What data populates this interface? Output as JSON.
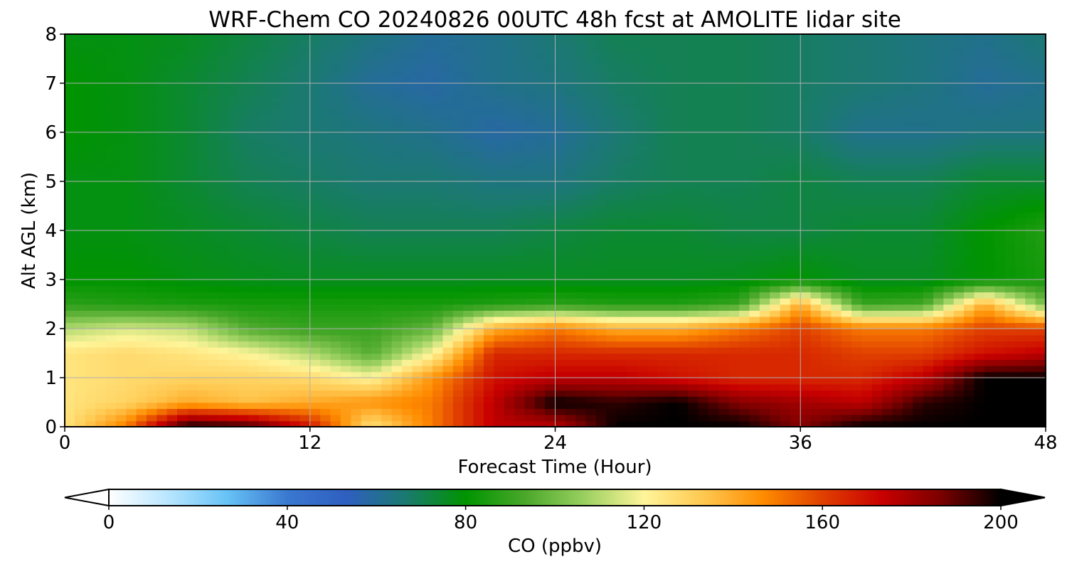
{
  "chart_data": {
    "type": "heatmap",
    "title": "WRF-Chem CO  20240826 00UTC 48h fcst at AMOLITE lidar site",
    "xlabel": "Forecast Time (Hour)",
    "ylabel": "Alt AGL (km)",
    "xlim": [
      0,
      48
    ],
    "ylim": [
      0,
      8
    ],
    "xticks": [
      0,
      12,
      24,
      36,
      48
    ],
    "yticks": [
      0,
      1,
      2,
      3,
      4,
      5,
      6,
      7,
      8
    ],
    "grid": true,
    "colorbar": {
      "label": "CO  (ppbv)",
      "range": [
        0,
        200
      ],
      "extend": "both",
      "ticks": [
        0,
        40,
        80,
        120,
        160,
        200
      ],
      "colors": [
        "#ffffff",
        "#b8e6ff",
        "#66c2f5",
        "#3a78d0",
        "#2e5fc0",
        "#1a7a6e",
        "#009400",
        "#4aa82a",
        "#9ad060",
        "#fff59a",
        "#ffc850",
        "#ff8c00",
        "#e04000",
        "#c80000",
        "#7a0000",
        "#000000"
      ]
    },
    "times": [
      0,
      3,
      6,
      9,
      12,
      15,
      18,
      21,
      24,
      27,
      30,
      33,
      36,
      39,
      42,
      45,
      48
    ],
    "altitudes": [
      0,
      0.5,
      1,
      1.5,
      2,
      2.5,
      3,
      4,
      5,
      6,
      7,
      8
    ],
    "values": [
      [
        125,
        150,
        200,
        195,
        170,
        125,
        150,
        175,
        175,
        200,
        200,
        200,
        185,
        200,
        200,
        200,
        200
      ],
      [
        125,
        130,
        140,
        135,
        140,
        145,
        150,
        175,
        200,
        195,
        200,
        185,
        180,
        175,
        195,
        200,
        200
      ],
      [
        125,
        128,
        130,
        130,
        128,
        120,
        145,
        170,
        175,
        175,
        170,
        165,
        165,
        165,
        175,
        200,
        200
      ],
      [
        125,
        128,
        125,
        120,
        110,
        95,
        120,
        165,
        165,
        165,
        165,
        165,
        165,
        160,
        160,
        170,
        175
      ],
      [
        110,
        115,
        112,
        95,
        90,
        90,
        98,
        140,
        150,
        140,
        140,
        150,
        160,
        150,
        150,
        160,
        160
      ],
      [
        88,
        86,
        85,
        84,
        84,
        84,
        84,
        86,
        88,
        86,
        86,
        90,
        140,
        90,
        92,
        140,
        100
      ],
      [
        80,
        80,
        78,
        77,
        76,
        76,
        76,
        76,
        76,
        76,
        76,
        77,
        80,
        76,
        76,
        80,
        84
      ],
      [
        78,
        78,
        76,
        74,
        72,
        70,
        70,
        70,
        72,
        74,
        74,
        72,
        72,
        74,
        74,
        80,
        86
      ],
      [
        78,
        78,
        74,
        70,
        68,
        66,
        66,
        64,
        64,
        68,
        70,
        70,
        72,
        70,
        70,
        74,
        74
      ],
      [
        80,
        78,
        74,
        68,
        66,
        64,
        62,
        58,
        60,
        66,
        70,
        70,
        68,
        62,
        62,
        64,
        64
      ],
      [
        80,
        78,
        74,
        70,
        66,
        60,
        58,
        62,
        64,
        68,
        70,
        70,
        68,
        66,
        64,
        60,
        62
      ],
      [
        78,
        78,
        76,
        72,
        68,
        64,
        60,
        62,
        66,
        70,
        70,
        70,
        68,
        66,
        64,
        62,
        66
      ]
    ]
  }
}
